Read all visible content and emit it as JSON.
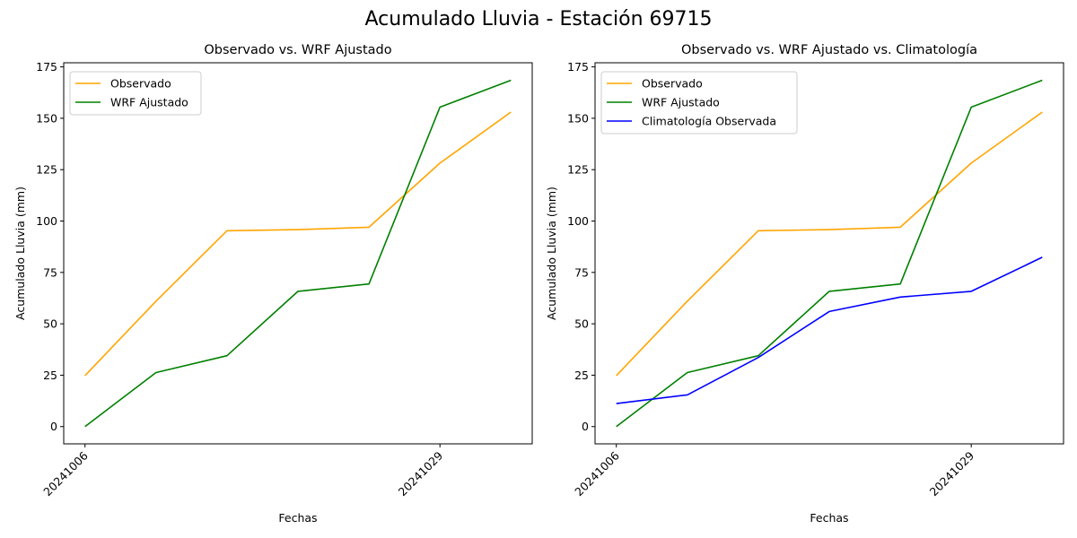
{
  "figure": {
    "suptitle": "Acumulado Lluvia - Estación 69715"
  },
  "chart_data": [
    {
      "type": "line",
      "title": "Observado vs. WRF Ajustado",
      "xlabel": "Fechas",
      "ylabel": "Acumulado Lluvia (mm)",
      "x_tick_labels": [
        "20241006",
        "20241029"
      ],
      "y_ticks": [
        0,
        25,
        50,
        75,
        100,
        125,
        150,
        175
      ],
      "ylim": [
        -8.4,
        177
      ],
      "legend_position": "upper-left",
      "grid": false,
      "series": [
        {
          "name": "Observado",
          "color": "#ffa500",
          "values": [
            24.8,
            61.0,
            95.3,
            95.8,
            97.0,
            128.2,
            153.0
          ]
        },
        {
          "name": "WRF Ajustado",
          "color": "#008000",
          "values": [
            0.0,
            26.3,
            34.5,
            65.8,
            69.4,
            155.4,
            168.5
          ]
        }
      ]
    },
    {
      "type": "line",
      "title": "Observado vs. WRF Ajustado vs. Climatología",
      "xlabel": "Fechas",
      "ylabel": "Acumulado Lluvia (mm)",
      "x_tick_labels": [
        "20241006",
        "20241029"
      ],
      "y_ticks": [
        0,
        25,
        50,
        75,
        100,
        125,
        150,
        175
      ],
      "ylim": [
        -8.4,
        177
      ],
      "legend_position": "upper-left",
      "grid": false,
      "series": [
        {
          "name": "Observado",
          "color": "#ffa500",
          "values": [
            24.8,
            61.0,
            95.3,
            95.8,
            97.0,
            128.2,
            153.0
          ]
        },
        {
          "name": "WRF Ajustado",
          "color": "#008000",
          "values": [
            0.0,
            26.3,
            34.5,
            65.8,
            69.4,
            155.4,
            168.5
          ]
        },
        {
          "name": "Climatología Observada",
          "color": "#0000ff",
          "values": [
            11.2,
            15.4,
            33.6,
            56.0,
            63.0,
            65.8,
            82.4
          ]
        }
      ]
    }
  ]
}
